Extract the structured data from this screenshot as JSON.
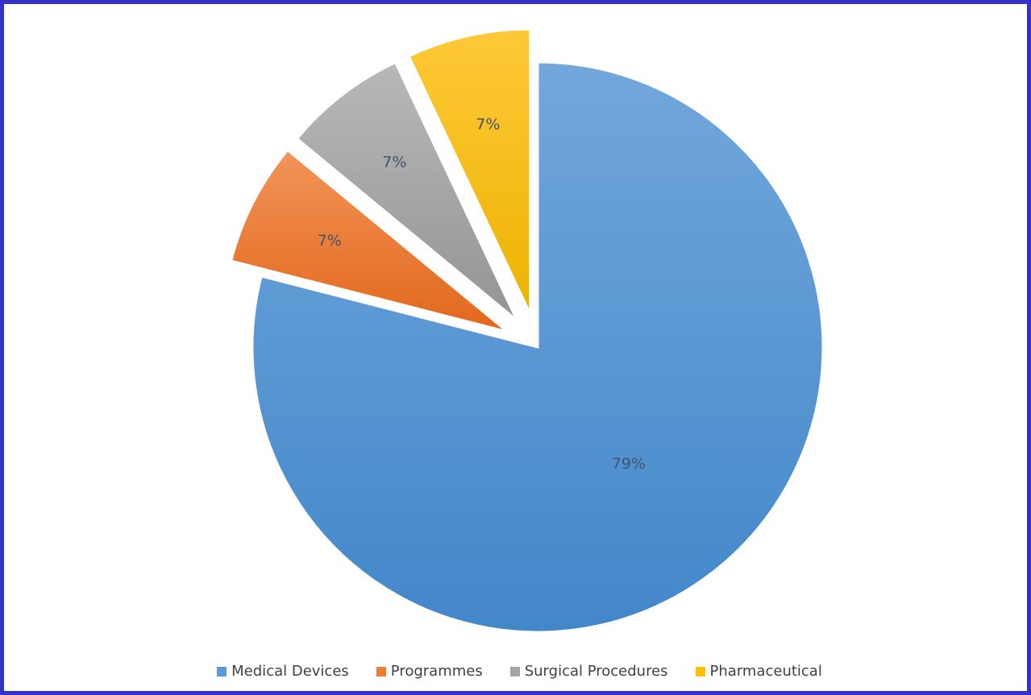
{
  "chart_data": {
    "type": "pie",
    "title": "",
    "categories": [
      "Medical Devices",
      "Programmes",
      "Surgical Procedures",
      "Pharmaceutical"
    ],
    "values": [
      79,
      7,
      7,
      7
    ],
    "data_labels": [
      "79%",
      "7%",
      "7%",
      "7%"
    ],
    "colors": [
      "#5b9bd5",
      "#ed7d31",
      "#a5a5a5",
      "#ffc000"
    ],
    "exploded": [
      false,
      true,
      true,
      true
    ],
    "legend_position": "bottom",
    "start_angle": "12 o'clock, clockwise"
  },
  "legend": {
    "items": [
      {
        "label": "Medical Devices",
        "color": "#5b9bd5"
      },
      {
        "label": "Programmes",
        "color": "#ed7d31"
      },
      {
        "label": "Surgical Procedures",
        "color": "#a5a5a5"
      },
      {
        "label": "Pharmaceutical",
        "color": "#ffc000"
      }
    ]
  },
  "frame": {
    "border_color": "#3333cc"
  }
}
